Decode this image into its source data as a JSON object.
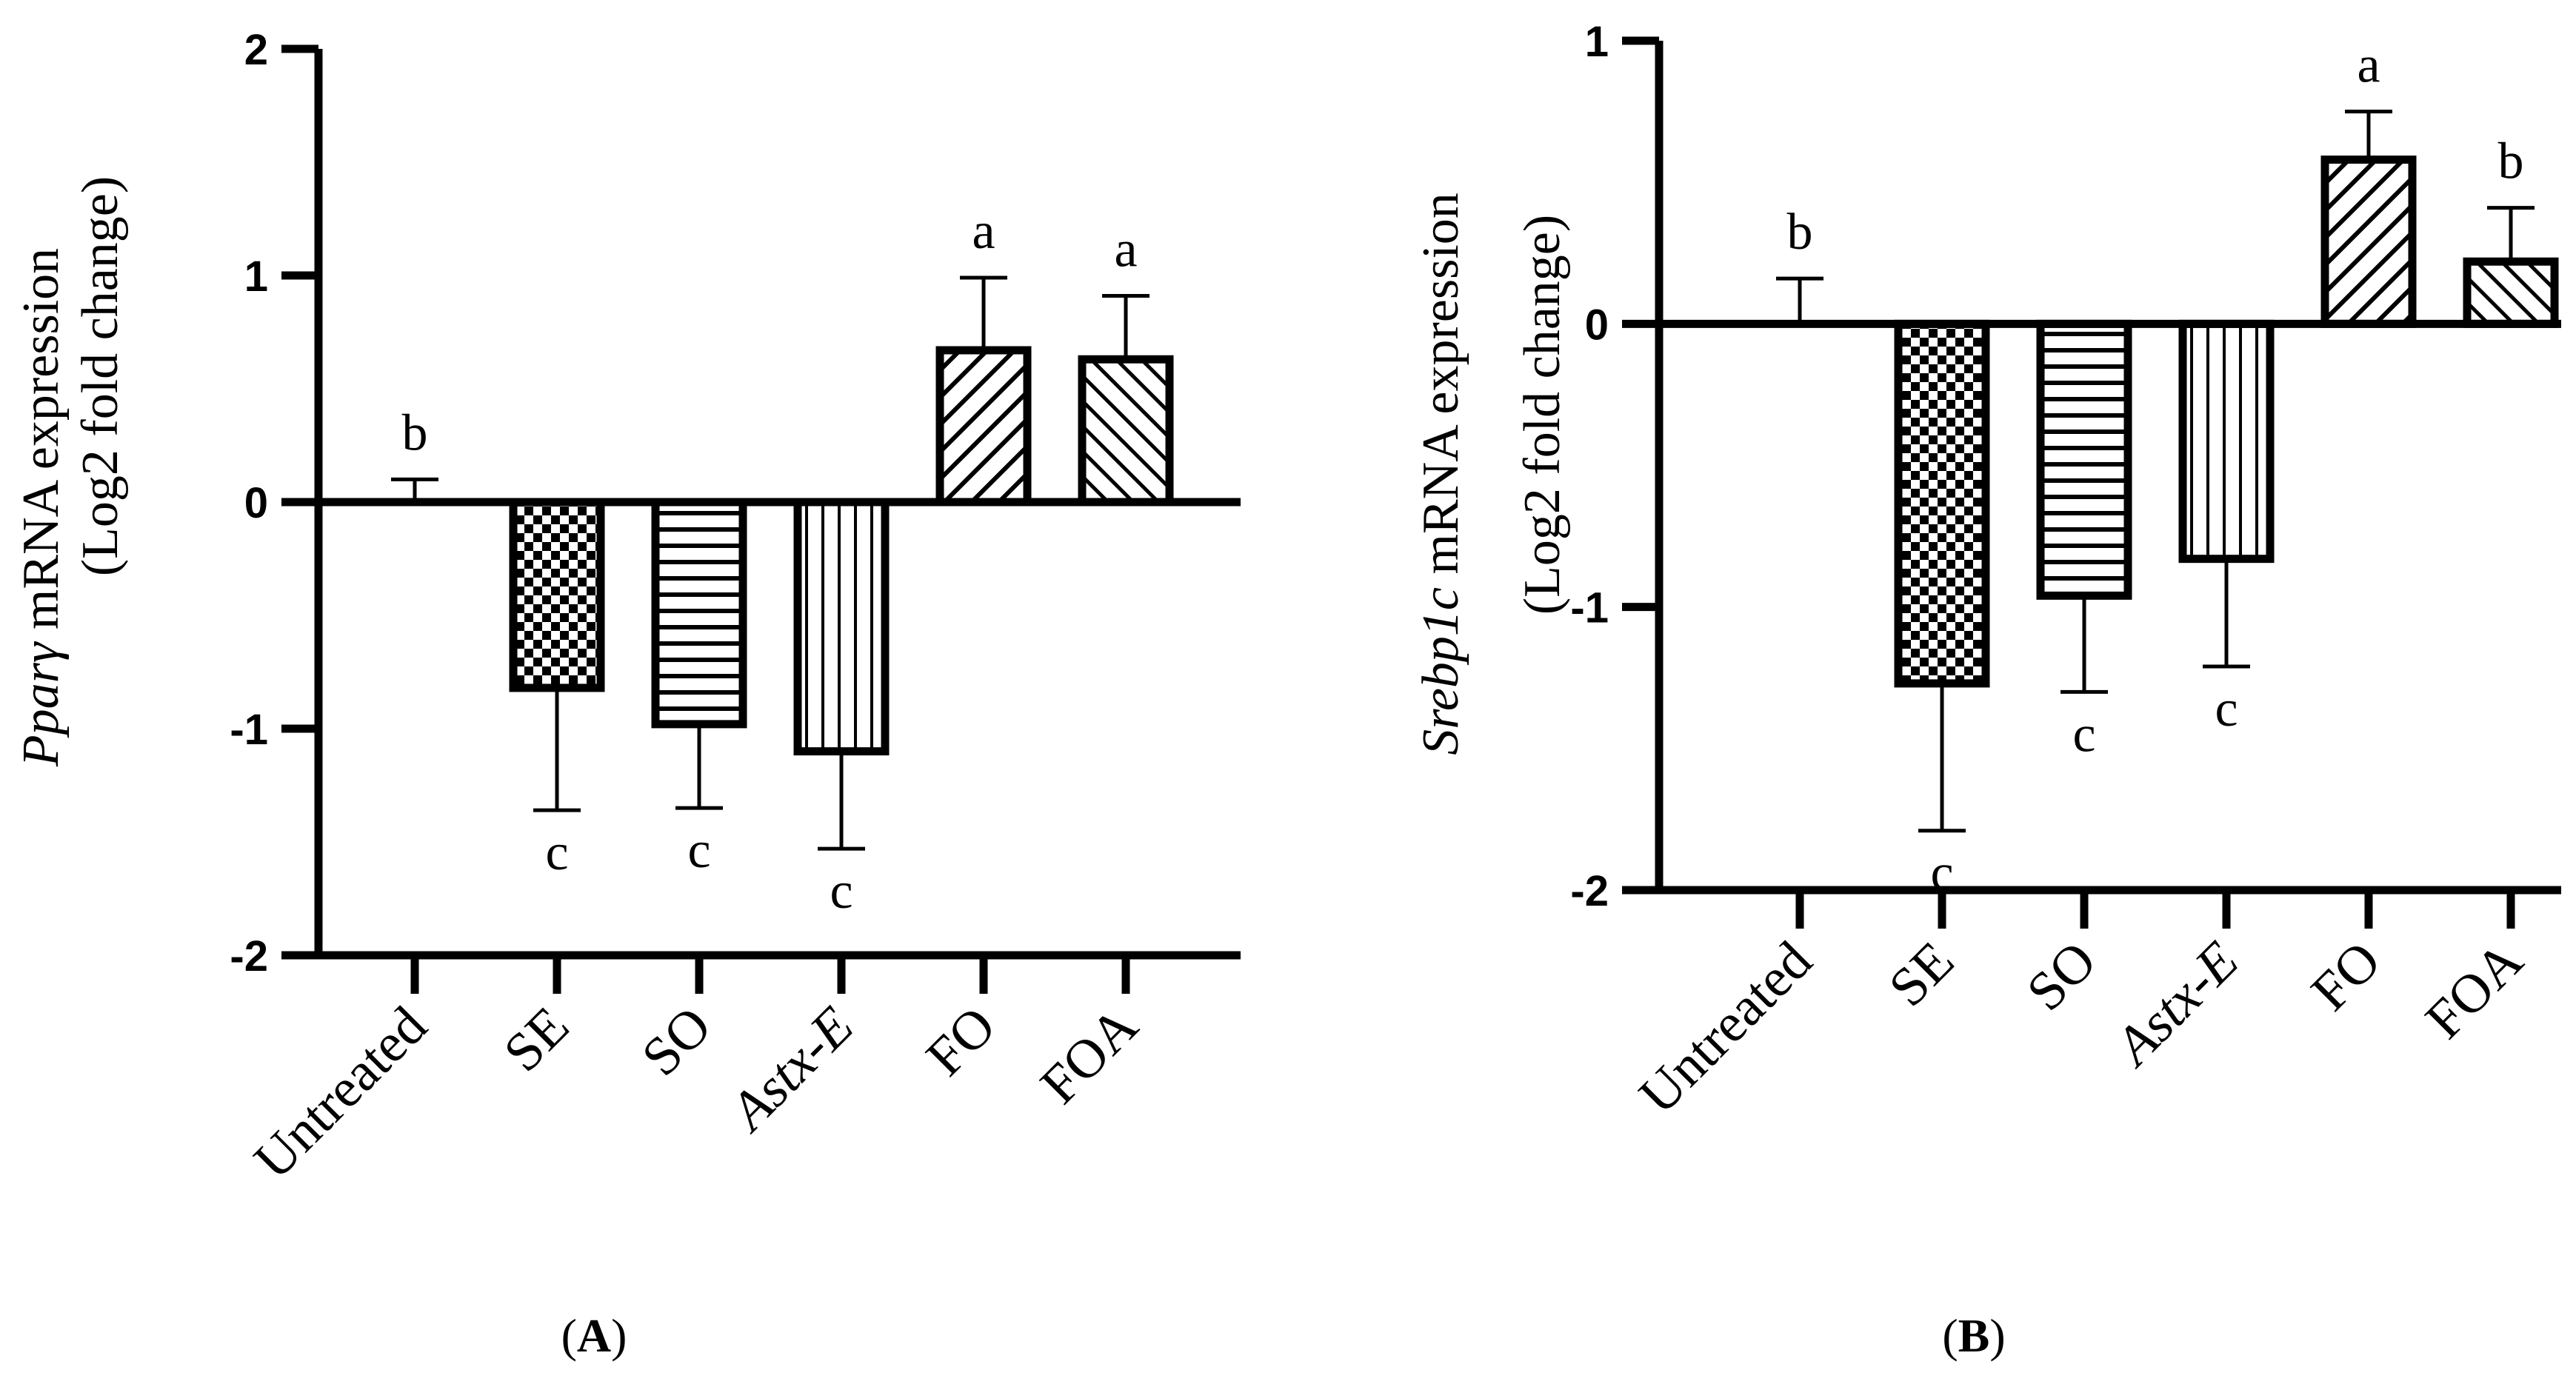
{
  "chart_data": [
    {
      "type": "bar",
      "panel": "A",
      "panel_label": {
        "open": "(",
        "letter": "A",
        "close": ")"
      },
      "ylabel": {
        "gene": "Pparγ",
        "line1_rest": "mRNA expression",
        "line2": "(Log2 fold change)"
      },
      "categories": [
        "Untreated",
        "SE",
        "SO",
        "Astx-E",
        "FO",
        "FOA"
      ],
      "values": [
        0.0,
        -0.82,
        -0.98,
        -1.1,
        0.67,
        0.63
      ],
      "errors": [
        0.1,
        0.54,
        0.37,
        0.43,
        0.32,
        0.28
      ],
      "significance": [
        "b",
        "c",
        "c",
        "c",
        "a",
        "a"
      ],
      "patterns": [
        "none",
        "checker",
        "hlines",
        "vlines",
        "diag-right",
        "diag-left"
      ],
      "ylim": [
        -2,
        2
      ],
      "yticks": [
        -2,
        -1,
        0,
        1,
        2
      ],
      "ytick_labels": [
        "-2",
        "-1",
        "0",
        "1",
        "2"
      ]
    },
    {
      "type": "bar",
      "panel": "B",
      "panel_label": {
        "open": "(",
        "letter": "B",
        "close": ")"
      },
      "ylabel": {
        "gene": "Srebp1c",
        "line1_rest": "mRNA expression",
        "line2": "(Log2 fold change)"
      },
      "categories": [
        "Untreated",
        "SE",
        "SO",
        "Astx-E",
        "FO",
        "FOA"
      ],
      "values": [
        0.0,
        -1.27,
        -0.96,
        -0.83,
        0.58,
        0.22
      ],
      "errors": [
        0.16,
        0.52,
        0.34,
        0.38,
        0.17,
        0.19
      ],
      "significance": [
        "b",
        "c",
        "c",
        "c",
        "a",
        "b"
      ],
      "patterns": [
        "none",
        "checker",
        "hlines",
        "vlines",
        "diag-right",
        "diag-left"
      ],
      "ylim": [
        -2,
        1
      ],
      "yticks": [
        -2,
        -1,
        0,
        1
      ],
      "ytick_labels": [
        "-2",
        "-1",
        "0",
        "1"
      ]
    }
  ]
}
